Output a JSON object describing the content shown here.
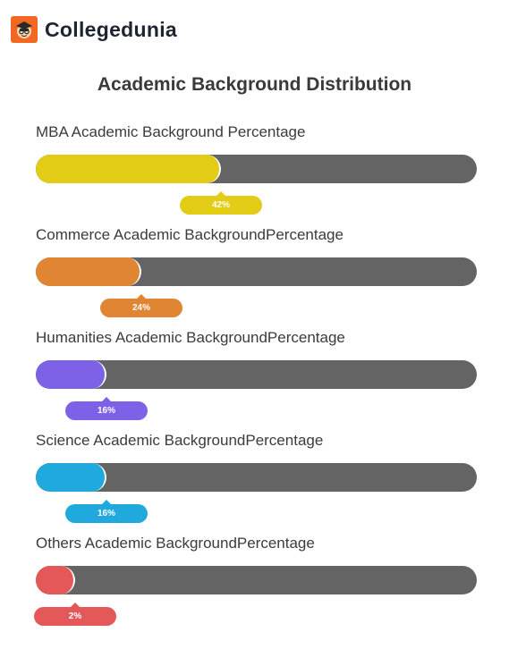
{
  "brand": {
    "name": "Collegedunia",
    "logo_icon": "student-face-logo-icon",
    "logo_color": "#f26722"
  },
  "chart_data": {
    "type": "bar",
    "orientation": "horizontal",
    "title": "Academic Background Distribution",
    "xlim": [
      0,
      100
    ],
    "unit": "%",
    "track_color": "#646464",
    "categories": [
      "MBA Academic Background Percentage",
      "Commerce Academic BackgroundPercentage",
      "Humanities Academic BackgroundPercentage",
      "Science Academic BackgroundPercentage",
      "Others Academic BackgroundPercentage"
    ],
    "values": [
      42,
      24,
      16,
      16,
      2
    ],
    "labels": [
      "42%",
      "24%",
      "16%",
      "16%",
      "2%"
    ],
    "colors": [
      "#e2cc16",
      "#e08633",
      "#7d62e8",
      "#20a9dc",
      "#e4585a"
    ]
  }
}
